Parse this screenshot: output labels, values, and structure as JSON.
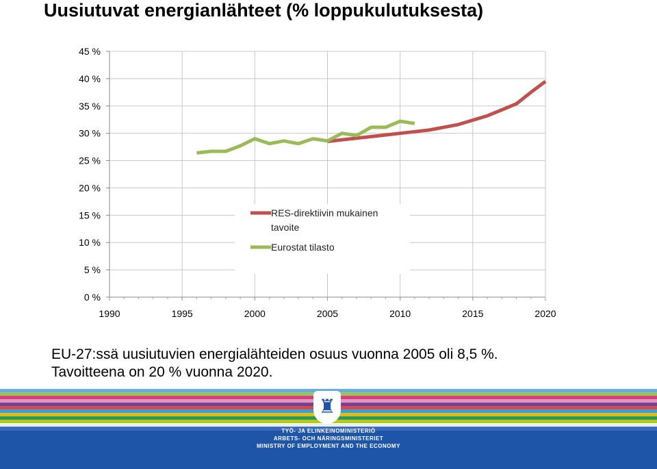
{
  "page": {
    "title": "Uusiutuvat energianlähteet (% loppukulutuksesta)",
    "caption_line1": "EU-27:ssä uusiutuvien energialähteiden osuus vuonna 2005 oli 8,5 %.",
    "caption_line2": "Tavoitteena on 20 % vuonna 2020."
  },
  "chart_data": {
    "type": "line",
    "title": "Uusiutuvat energianlähteet (% loppukulutuksesta)",
    "xlabel": "",
    "ylabel": "",
    "xlim": [
      1990,
      2020
    ],
    "ylim": [
      0,
      45
    ],
    "grid": true,
    "legend_position": "inside-center",
    "x_ticks": [
      "1990",
      "1995",
      "2000",
      "2005",
      "2010",
      "2015",
      "2020"
    ],
    "y_ticks": [
      "0 %",
      "5 %",
      "10 %",
      "15 %",
      "20 %",
      "25 %",
      "30 %",
      "35 %",
      "40 %",
      "45 %"
    ],
    "series": [
      {
        "name": "RES-direktiivin mukainen tavoite",
        "color": "#c0504d",
        "x": [
          2005,
          2006,
          2007,
          2008,
          2009,
          2010,
          2011,
          2012,
          2013,
          2014,
          2015,
          2016,
          2017,
          2018,
          2019,
          2020
        ],
        "y": [
          28.5,
          28.8,
          29.1,
          29.4,
          29.7,
          30.0,
          30.3,
          30.6,
          31.1,
          31.6,
          32.4,
          33.2,
          34.3,
          35.4,
          37.5,
          39.5
        ]
      },
      {
        "name": "Eurostat tilasto",
        "color": "#9bbb59",
        "x": [
          1996,
          1997,
          1998,
          1999,
          2000,
          2001,
          2002,
          2003,
          2004,
          2005,
          2006,
          2007,
          2008,
          2009,
          2010,
          2011
        ],
        "y": [
          26.4,
          26.7,
          26.7,
          27.7,
          29.0,
          28.1,
          28.6,
          28.1,
          29.0,
          28.6,
          30.0,
          29.6,
          31.1,
          31.1,
          32.2,
          31.8
        ]
      }
    ]
  },
  "footer": {
    "line1": "TYÖ- JA ELINKEINOMINISTERIÖ",
    "line2": "ARBETS- OCH NÄRINGSMINISTERIET",
    "line3": "MINISTRY OF EMPLOYMENT AND THE ECONOMY",
    "crest_icon": "lion-crest-icon",
    "stripe_colors": [
      "#6fb7e9",
      "#a6cf4a",
      "#e73c7e",
      "#f3a0c2",
      "#7c3f98",
      "#e84c3d",
      "#36a9e1",
      "#f7c600",
      "#2a9d5c",
      "#c4d600",
      "#ffffff",
      "#3b6cc0"
    ]
  }
}
